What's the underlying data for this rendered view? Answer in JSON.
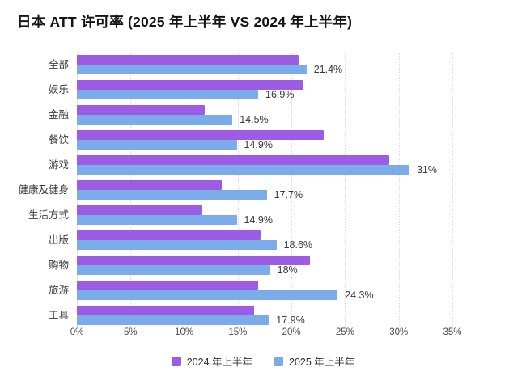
{
  "title": "日本 ATT 许可率 (2025 年上半年 VS 2024 年上半年)",
  "chart_data": {
    "type": "bar",
    "orientation": "horizontal",
    "title": "日本 ATT 许可率 (2025 年上半年 VS 2024 年上半年)",
    "categories": [
      "全部",
      "娱乐",
      "金融",
      "餐饮",
      "游戏",
      "健康及健身",
      "生活方式",
      "出版",
      "购物",
      "旅游",
      "工具"
    ],
    "series": [
      {
        "name": "2024 年上半年",
        "color": "#9c5ce4",
        "values": [
          20.7,
          21.1,
          11.9,
          23.0,
          29.1,
          13.5,
          11.7,
          17.1,
          21.7,
          16.9,
          16.5
        ]
      },
      {
        "name": "2025 年上半年",
        "color": "#7cabe9",
        "values": [
          21.4,
          16.9,
          14.5,
          14.9,
          31,
          17.7,
          14.9,
          18.6,
          18,
          24.3,
          17.9
        ]
      }
    ],
    "value_labels": [
      "21.4%",
      "16.9%",
      "14.5%",
      "14.9%",
      "31%",
      "17.7%",
      "14.9%",
      "18.6%",
      "18%",
      "24.3%",
      "17.9%"
    ],
    "value_labels_for_series": "2025 年上半年",
    "xlim": [
      0,
      35
    ],
    "x_ticks": [
      "0%",
      "5%",
      "10%",
      "15%",
      "20%",
      "25%",
      "30%",
      "35%"
    ],
    "grid": "vertical-dotted",
    "legend_position": "bottom"
  },
  "legend": {
    "items": [
      {
        "label": "2024 年上半年",
        "color": "#9c5ce4"
      },
      {
        "label": "2025 年上半年",
        "color": "#7cabe9"
      }
    ]
  }
}
